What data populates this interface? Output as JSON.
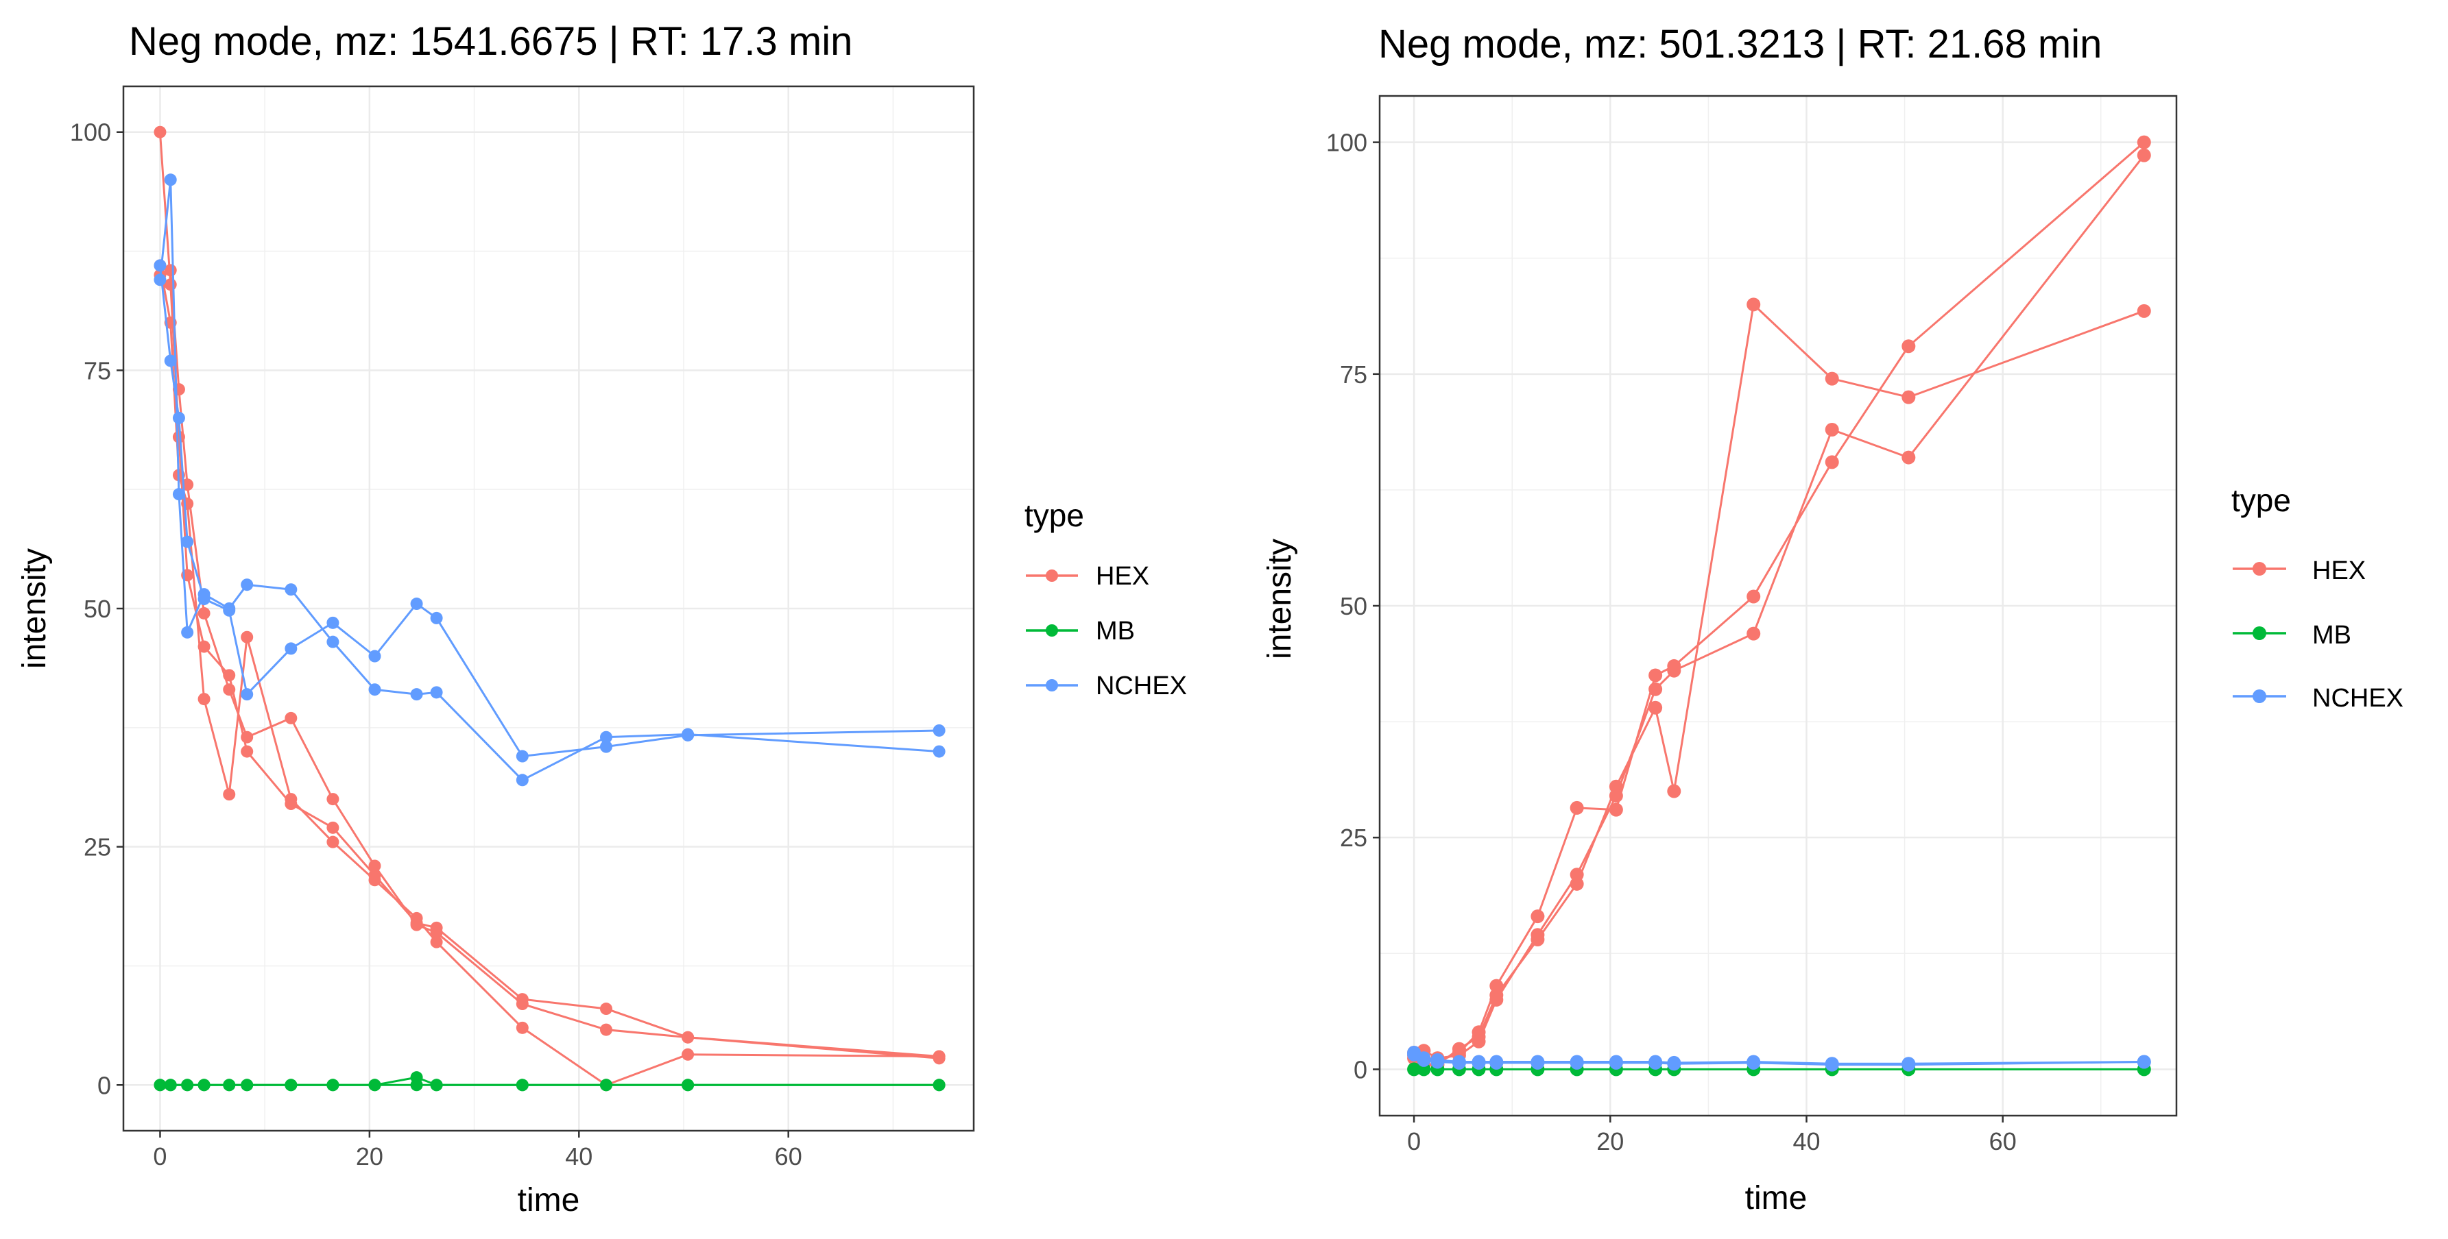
{
  "legend": {
    "title": "type",
    "entries": [
      {
        "label": "HEX",
        "color": "#F8766D"
      },
      {
        "label": "MB",
        "color": "#00BA38"
      },
      {
        "label": "NCHEX",
        "color": "#619CFF"
      }
    ]
  },
  "chart_data": [
    {
      "type": "line",
      "title": "Neg mode, mz: 1541.6675 | RT: 17.3 min",
      "xlabel": "time",
      "ylabel": "intensity",
      "xlim": [
        -3.5,
        77.7
      ],
      "ylim": [
        -4.8,
        104.8
      ],
      "xticks": [
        0,
        20,
        40,
        60
      ],
      "yticks": [
        0,
        25,
        50,
        75,
        100
      ],
      "xgrid_minor": [
        10,
        30,
        50,
        70
      ],
      "ygrid_minor": [
        12.5,
        37.5,
        62.5,
        87.5
      ],
      "series": [
        {
          "name": "HEX",
          "type_index": 0,
          "x": [
            0,
            1,
            1.8,
            2.6,
            4.2,
            6.6,
            8.3,
            12.5,
            16.5,
            20.5,
            24.5,
            26.4,
            34.6,
            42.6,
            50.4,
            74.4
          ],
          "y": [
            100,
            84,
            68,
            53.5,
            46,
            43,
            35,
            29.5,
            27,
            22,
            17,
            16.5,
            9,
            8,
            5,
            3
          ]
        },
        {
          "name": "HEX",
          "type_index": 0,
          "x": [
            0,
            1,
            1.8,
            2.6,
            4.2,
            6.6,
            8.3,
            12.5,
            16.5,
            20.5,
            24.5,
            26.4,
            34.6,
            42.6,
            50.4,
            74.4
          ],
          "y": [
            86,
            80,
            64,
            61,
            40.5,
            30.5,
            47,
            30,
            25.5,
            21.5,
            17.5,
            15,
            6,
            0,
            3.2,
            3
          ]
        },
        {
          "name": "HEX",
          "type_index": 0,
          "x": [
            0,
            1,
            1.8,
            2.6,
            4.2,
            6.6,
            8.3,
            12.5,
            16.5,
            20.5,
            24.5,
            26.4,
            34.6,
            42.6,
            50.4,
            74.4
          ],
          "y": [
            85,
            85.5,
            73,
            63,
            49.5,
            41.5,
            36.5,
            38.5,
            30,
            23,
            16.8,
            16,
            8.5,
            5.8,
            5,
            2.8
          ]
        },
        {
          "name": "MB",
          "type_index": 1,
          "x": [
            0,
            1,
            2.6,
            4.2,
            6.6,
            8.3,
            12.5,
            16.5,
            20.5,
            24.5,
            26.4,
            34.6,
            42.6,
            50.4,
            74.4
          ],
          "y": [
            0,
            0,
            0,
            0,
            0,
            0,
            0,
            0,
            0,
            0.8,
            0,
            0,
            0,
            0,
            0
          ]
        },
        {
          "name": "MB",
          "type_index": 1,
          "x": [
            0,
            1,
            2.6,
            4.2,
            6.6,
            8.3,
            12.5,
            16.5,
            20.5,
            24.5,
            26.4,
            34.6,
            42.6,
            50.4,
            74.4
          ],
          "y": [
            0,
            0,
            0,
            0,
            0,
            0,
            0,
            0,
            0,
            0,
            0,
            0,
            0,
            0,
            0
          ]
        },
        {
          "name": "NCHEX",
          "type_index": 2,
          "x": [
            0,
            1,
            1.8,
            2.6,
            4.2,
            6.6,
            8.3,
            12.5,
            16.5,
            20.5,
            24.5,
            26.4,
            34.6,
            42.6,
            50.4,
            74.4
          ],
          "y": [
            84.5,
            95,
            62,
            47.5,
            51.5,
            50,
            52.5,
            52,
            46.5,
            41.5,
            41,
            41.2,
            32,
            36.5,
            36.8,
            35
          ]
        },
        {
          "name": "NCHEX",
          "type_index": 2,
          "x": [
            0,
            1,
            1.8,
            2.6,
            4.2,
            6.6,
            8.3,
            12.5,
            16.5,
            20.5,
            24.5,
            26.4,
            34.6,
            42.6,
            50.4,
            74.4
          ],
          "y": [
            86,
            76,
            70,
            57,
            51,
            49.8,
            41,
            45.8,
            48.5,
            45,
            50.5,
            49,
            34.5,
            35.5,
            36.7,
            37.2
          ]
        }
      ]
    },
    {
      "type": "line",
      "title": "Neg mode, mz: 501.3213 | RT: 21.68 min",
      "xlabel": "time",
      "ylabel": "intensity",
      "xlim": [
        -3.5,
        77.7
      ],
      "ylim": [
        -5.0,
        105.0
      ],
      "xticks": [
        0,
        20,
        40,
        60
      ],
      "yticks": [
        0,
        25,
        50,
        75,
        100
      ],
      "xgrid_minor": [
        10,
        30,
        50,
        70
      ],
      "ygrid_minor": [
        12.5,
        37.5,
        62.5,
        87.5
      ],
      "series": [
        {
          "name": "HEX",
          "type_index": 0,
          "x": [
            0,
            1,
            2.4,
            4.6,
            6.6,
            8.4,
            12.6,
            16.6,
            20.6,
            24.6,
            26.5,
            34.6,
            42.6,
            50.4,
            74.4
          ],
          "y": [
            1.8,
            1,
            0.8,
            1.8,
            4,
            9,
            16.5,
            28.2,
            28,
            42.5,
            43.5,
            51,
            65.5,
            78,
            100
          ]
        },
        {
          "name": "HEX",
          "type_index": 0,
          "x": [
            0,
            1,
            2.4,
            4.6,
            6.6,
            8.4,
            12.6,
            16.6,
            20.6,
            24.6,
            26.5,
            34.6,
            42.6,
            50.4,
            74.4
          ],
          "y": [
            1.5,
            0.5,
            0.5,
            2.2,
            3.5,
            8,
            14,
            20,
            30.5,
            39,
            30,
            82.5,
            74.5,
            72.5,
            81.8
          ]
        },
        {
          "name": "HEX",
          "type_index": 0,
          "x": [
            0,
            1,
            2.4,
            4.6,
            6.6,
            8.4,
            12.6,
            16.6,
            20.6,
            24.6,
            26.5,
            34.6,
            42.6,
            50.4,
            74.4
          ],
          "y": [
            1.2,
            2,
            1.2,
            1.5,
            3,
            7.5,
            14.5,
            21,
            29.5,
            41,
            43,
            47,
            69,
            66,
            98.6
          ]
        },
        {
          "name": "MB",
          "type_index": 1,
          "x": [
            0,
            1,
            2.4,
            4.6,
            6.6,
            8.4,
            12.6,
            16.6,
            20.6,
            24.6,
            26.5,
            34.6,
            42.6,
            50.4,
            74.4
          ],
          "y": [
            0,
            0,
            0,
            0,
            0,
            0,
            0,
            0,
            0,
            0,
            0,
            0,
            0,
            0,
            0
          ]
        },
        {
          "name": "NCHEX",
          "type_index": 2,
          "x": [
            0,
            1,
            2.4,
            4.6,
            6.6,
            8.4,
            12.6,
            16.6,
            20.6,
            24.6,
            26.5,
            34.6,
            42.6,
            50.4,
            74.4
          ],
          "y": [
            1.8,
            1.2,
            1,
            0.8,
            0.8,
            0.8,
            0.8,
            0.8,
            0.8,
            0.8,
            0.7,
            0.8,
            0.6,
            0.6,
            0.8
          ]
        },
        {
          "name": "NCHEX",
          "type_index": 2,
          "x": [
            0,
            1,
            2.4,
            4.6,
            6.6,
            8.4,
            12.6,
            16.6,
            20.6,
            24.6,
            26.5,
            34.6,
            42.6,
            50.4,
            74.4
          ],
          "y": [
            1.6,
            1,
            0.8,
            0.7,
            0.7,
            0.7,
            0.7,
            0.7,
            0.7,
            0.7,
            0.6,
            0.7,
            0.5,
            0.5,
            0.8
          ]
        }
      ]
    }
  ]
}
